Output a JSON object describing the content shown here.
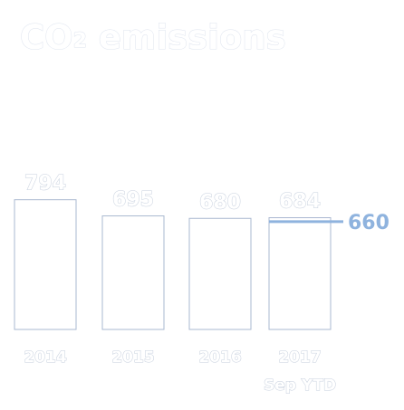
{
  "title_main": "CO",
  "title_sub": "2",
  "title_rest": " emissions",
  "chart_data": {
    "type": "bar",
    "title": "CO₂ emissions",
    "categories": [
      [
        "2014"
      ],
      [
        "2015"
      ],
      [
        "2016"
      ],
      [
        "2017",
        "Sep YTD"
      ]
    ],
    "values": [
      794,
      695,
      680,
      684
    ],
    "value_labels": [
      "794",
      "695",
      "680",
      "684"
    ],
    "target": {
      "value": 660,
      "label": "660",
      "applies_to_category": 3
    },
    "bar_fill": "#ffffff",
    "bar_edge": "#aab8d0",
    "target_color": "#8fb3de",
    "grid": false,
    "legend": "none"
  }
}
